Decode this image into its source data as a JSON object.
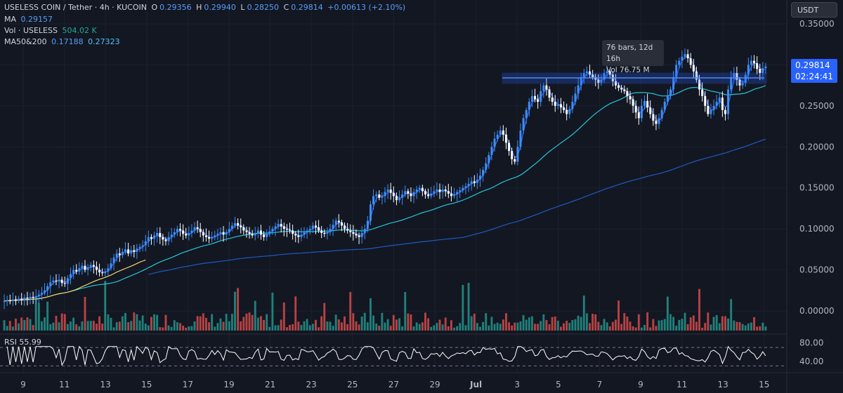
{
  "header": {
    "symbol": "USELESS COIN / Tether · 4h · KUCOIN",
    "open_label": "O",
    "open": "0.29356",
    "high_label": "H",
    "high": "0.29940",
    "low_label": "L",
    "low": "0.28250",
    "close_label": "C",
    "close": "0.29814",
    "change": "+0.00613 (+2.10%)"
  },
  "ma_legend": {
    "label": "MA",
    "value": "0.29157"
  },
  "vol_legend": {
    "label": "Vol · USELESS",
    "value": "504.02 K"
  },
  "ma2_legend": {
    "label": "MA50&200",
    "value1": "0.17188",
    "value2": "0.27323"
  },
  "rsi_legend": {
    "label": "RSI",
    "value": "55.99"
  },
  "currency_button": "USDT",
  "price_tag": {
    "price": "0.29814",
    "countdown": "02:24:41"
  },
  "tooltip": {
    "line1": "76 bars, 12d 16h",
    "line2": "Vol 76.75 M"
  },
  "colors": {
    "background": "#131722",
    "up": "#3d8ff5",
    "down": "#ffffff",
    "vol_up": "#26a69a",
    "vol_down": "#ef5350",
    "ma_short": "#2962ff",
    "ma50": "#26c6da",
    "ma200": "#1e5bbf",
    "ma_yellow": "#f5d76e"
  },
  "chart_data": {
    "type": "candlestick",
    "title": "",
    "x_ticks": [
      "9",
      "11",
      "13",
      "15",
      "17",
      "19",
      "21",
      "23",
      "25",
      "27",
      "29",
      "Jul",
      "3",
      "5",
      "7",
      "9",
      "11",
      "13",
      "15"
    ],
    "y_ticks": [
      "0.35000",
      "0.30000",
      "0.25000",
      "0.20000",
      "0.15000",
      "0.10000",
      "0.05000",
      "0.00000"
    ],
    "ylim": [
      -0.025,
      0.375
    ],
    "rsi_ticks": [
      "80.00",
      "40.00"
    ],
    "rsi_levels": [
      70,
      30
    ],
    "close_series": [
      0.012,
      0.013,
      0.012,
      0.014,
      0.013,
      0.015,
      0.014,
      0.016,
      0.015,
      0.017,
      0.016,
      0.018,
      0.02,
      0.022,
      0.025,
      0.03,
      0.035,
      0.037,
      0.036,
      0.038,
      0.034,
      0.033,
      0.04,
      0.045,
      0.05,
      0.048,
      0.052,
      0.055,
      0.05,
      0.053,
      0.056,
      0.054,
      0.05,
      0.047,
      0.046,
      0.048,
      0.052,
      0.058,
      0.065,
      0.07,
      0.068,
      0.072,
      0.075,
      0.07,
      0.074,
      0.072,
      0.076,
      0.078,
      0.08,
      0.085,
      0.09,
      0.088,
      0.092,
      0.095,
      0.09,
      0.087,
      0.085,
      0.09,
      0.093,
      0.096,
      0.1,
      0.098,
      0.094,
      0.092,
      0.095,
      0.098,
      0.102,
      0.1,
      0.096,
      0.092,
      0.09,
      0.088,
      0.09,
      0.092,
      0.094,
      0.096,
      0.093,
      0.096,
      0.1,
      0.104,
      0.107,
      0.104,
      0.102,
      0.098,
      0.096,
      0.094,
      0.092,
      0.095,
      0.098,
      0.093,
      0.09,
      0.094,
      0.097,
      0.1,
      0.103,
      0.106,
      0.103,
      0.1,
      0.099,
      0.098,
      0.094,
      0.092,
      0.09,
      0.093,
      0.096,
      0.098,
      0.1,
      0.104,
      0.102,
      0.098,
      0.095,
      0.094,
      0.096,
      0.1,
      0.105,
      0.11,
      0.108,
      0.104,
      0.1,
      0.098,
      0.096,
      0.094,
      0.092,
      0.09,
      0.095,
      0.1,
      0.11,
      0.13,
      0.14,
      0.142,
      0.138,
      0.14,
      0.145,
      0.148,
      0.144,
      0.14,
      0.135,
      0.138,
      0.142,
      0.146,
      0.143,
      0.14,
      0.145,
      0.148,
      0.15,
      0.146,
      0.142,
      0.14,
      0.143,
      0.146,
      0.148,
      0.145,
      0.148,
      0.146,
      0.143,
      0.14,
      0.142,
      0.145,
      0.147,
      0.15,
      0.152,
      0.155,
      0.158,
      0.156,
      0.16,
      0.165,
      0.172,
      0.18,
      0.19,
      0.2,
      0.21,
      0.215,
      0.22,
      0.215,
      0.205,
      0.195,
      0.185,
      0.182,
      0.2,
      0.22,
      0.235,
      0.245,
      0.255,
      0.262,
      0.258,
      0.255,
      0.268,
      0.275,
      0.27,
      0.26,
      0.255,
      0.25,
      0.252,
      0.248,
      0.245,
      0.24,
      0.246,
      0.255,
      0.265,
      0.275,
      0.285,
      0.29,
      0.292,
      0.288,
      0.285,
      0.282,
      0.278,
      0.282,
      0.29,
      0.292,
      0.288,
      0.28,
      0.275,
      0.272,
      0.27,
      0.268,
      0.262,
      0.258,
      0.25,
      0.242,
      0.235,
      0.25,
      0.256,
      0.248,
      0.24,
      0.232,
      0.228,
      0.235,
      0.245,
      0.255,
      0.262,
      0.27,
      0.285,
      0.3,
      0.305,
      0.31,
      0.313,
      0.308,
      0.3,
      0.292,
      0.282,
      0.27,
      0.262,
      0.25,
      0.24,
      0.245,
      0.25,
      0.255,
      0.26,
      0.245,
      0.24,
      0.27,
      0.285,
      0.29,
      0.282,
      0.275,
      0.278,
      0.288,
      0.3,
      0.305,
      0.302,
      0.295,
      0.29,
      0.296,
      0.29814
    ]
  }
}
